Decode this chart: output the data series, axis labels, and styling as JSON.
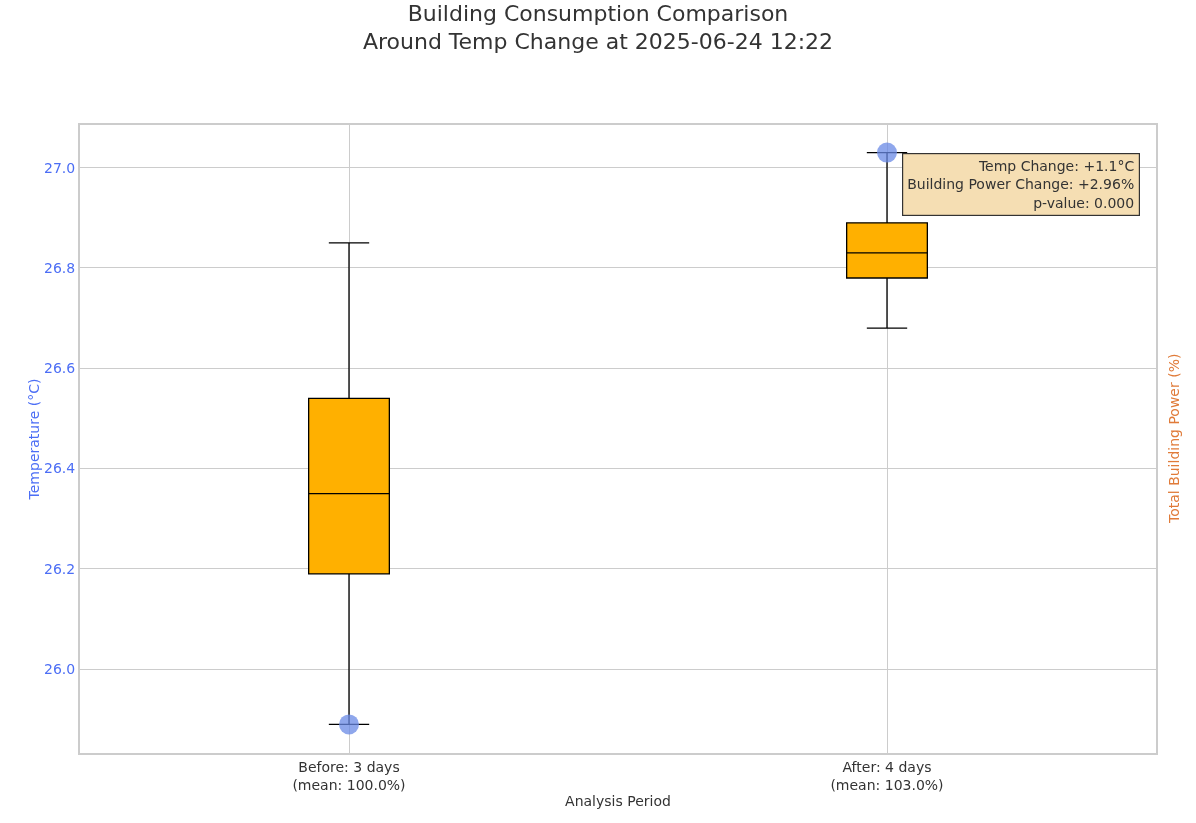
{
  "chart_data": {
    "type": "box",
    "title": "Building Consumption Comparison\nAround Temp Change at 2025-06-24 12:22",
    "xlabel": "Analysis Period",
    "ylabel": "Temperature (°C)",
    "y2label": "Total Building Power (%)",
    "categories": [
      "Before: 3 days\n(mean: 100.0%)",
      "After: 4 days\n(mean: 103.0%)"
    ],
    "color": "#ffb000",
    "boxes": [
      {
        "low": 25.89,
        "q1": 26.19,
        "median": 26.35,
        "q3": 26.54,
        "high": 26.85
      },
      {
        "low": 26.68,
        "q1": 26.78,
        "median": 26.83,
        "q3": 26.89,
        "high": 27.03
      }
    ],
    "series": [
      {
        "type": "scatter",
        "color": "#6a8ae6",
        "x": [
          "Before: 3 days\n(mean: 100.0%)",
          "After: 4 days\n(mean: 103.0%)"
        ],
        "values": [
          25.89,
          27.03
        ]
      }
    ],
    "ylim": [
      25.833,
      27.085
    ],
    "yticks": [
      {
        "value": 26,
        "label": "26.0"
      },
      {
        "value": 26.2,
        "label": "26.2"
      },
      {
        "value": 26.4,
        "label": "26.4"
      },
      {
        "value": 26.6,
        "label": "26.6"
      },
      {
        "value": 26.8,
        "label": "26.8"
      },
      {
        "value": 27,
        "label": "27.0"
      }
    ],
    "annotations": [
      "Temp Change: +1.1°C\nBuilding Power Change: +2.96%\np-value: 0.000"
    ],
    "grid": true,
    "marker": "circle"
  }
}
